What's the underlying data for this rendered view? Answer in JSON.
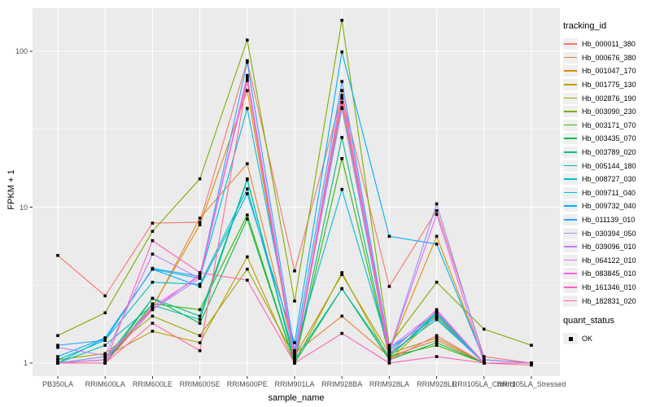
{
  "figure": {
    "background": "#FFFFFF",
    "panel_background": "#EBEBEB",
    "grid_color": "#FFFFFF",
    "axis_text_color": "#4D4D4D",
    "tick_mark_color": "#333333",
    "point_color": "#000000"
  },
  "chart_data": {
    "type": "line",
    "title": "",
    "xlabel": "sample_name",
    "ylabel": "FPKM + 1",
    "y_scale": "log10",
    "y_major_ticks": [
      1,
      10,
      100
    ],
    "y_major_tick_labels": [
      "1",
      "10",
      "100"
    ],
    "y_minor_ticks": [
      3.162,
      31.62
    ],
    "ylim": [
      0.85,
      190
    ],
    "grid": true,
    "categories": [
      "PB350LA",
      "RRIM600LA",
      "RRIM600LE",
      "RRIM600SE",
      "RRIM600PE",
      "RRIM901LA",
      "RRIM928BA",
      "RRIM928LA",
      "RRIM928LE",
      "RRII105LA_Control",
      "RRII105LA_Stressed"
    ],
    "series": [
      {
        "name": "Hb_000011_380",
        "color": "#F8766D",
        "values": [
          4.9,
          2.7,
          7.9,
          8.0,
          87,
          3.9,
          52,
          3.1,
          9.5,
          1.1,
          1.0
        ]
      },
      {
        "name": "Hb_000676_380",
        "color": "#EA8331",
        "values": [
          1.0,
          1.05,
          2.25,
          8.5,
          19,
          1.15,
          2.0,
          1.1,
          1.4,
          1.0,
          1.0
        ]
      },
      {
        "name": "Hb_001047_170",
        "color": "#D89000",
        "values": [
          1.0,
          1.0,
          2.3,
          7.7,
          56,
          1.05,
          47,
          1.2,
          6.5,
          1.05,
          1.0
        ]
      },
      {
        "name": "Hb_001775_130",
        "color": "#C09B00",
        "values": [
          1.0,
          1.1,
          1.6,
          1.35,
          4.8,
          1.0,
          3.8,
          1.05,
          2.0,
          1.0,
          1.0
        ]
      },
      {
        "name": "Hb_002876_190",
        "color": "#A3A500",
        "values": [
          1.05,
          1.15,
          2.0,
          1.5,
          4.0,
          1.1,
          3.7,
          1.15,
          1.45,
          1.0,
          1.0
        ]
      },
      {
        "name": "Hb_003090_230",
        "color": "#7CAE00",
        "values": [
          1.5,
          2.1,
          7.0,
          15.2,
          118,
          2.5,
          158,
          1.3,
          3.3,
          1.65,
          1.3
        ]
      },
      {
        "name": "Hb_003171_070",
        "color": "#39B600",
        "values": [
          1.0,
          1.0,
          2.4,
          2.2,
          8.9,
          1.0,
          20.5,
          1.1,
          1.3,
          1.0,
          1.0
        ]
      },
      {
        "name": "Hb_003435_070",
        "color": "#00BB4E",
        "values": [
          1.0,
          1.0,
          2.6,
          1.8,
          8.4,
          1.0,
          3.0,
          1.05,
          1.35,
          1.0,
          1.0
        ]
      },
      {
        "name": "Hb_003789_020",
        "color": "#00BF7D",
        "values": [
          1.0,
          1.05,
          2.6,
          2.0,
          15.2,
          1.0,
          28,
          1.1,
          2.1,
          1.0,
          1.0
        ]
      },
      {
        "name": "Hb_005144_180",
        "color": "#00C1A3",
        "values": [
          1.0,
          1.3,
          2.35,
          1.9,
          15.0,
          1.05,
          3.0,
          1.1,
          2.05,
          1.0,
          1.0
        ]
      },
      {
        "name": "Hb_008727_030",
        "color": "#00BFC4",
        "values": [
          1.05,
          1.4,
          3.3,
          3.2,
          13.1,
          1.1,
          43.5,
          1.15,
          1.9,
          1.0,
          1.0
        ]
      },
      {
        "name": "Hb_009711_040",
        "color": "#00BAE0",
        "values": [
          1.0,
          1.45,
          4.0,
          3.5,
          43,
          1.2,
          13,
          1.2,
          2.1,
          1.0,
          1.0
        ]
      },
      {
        "name": "Hb_009732_040",
        "color": "#00B0F6",
        "values": [
          1.1,
          1.45,
          4.0,
          3.1,
          12.2,
          1.35,
          99,
          6.5,
          5.8,
          1.05,
          1.0
        ]
      },
      {
        "name": "Hb_011139_010",
        "color": "#35A2FF",
        "values": [
          1.3,
          1.4,
          4.05,
          3.6,
          85,
          1.2,
          64,
          1.25,
          1.95,
          1.0,
          1.0
        ]
      },
      {
        "name": "Hb_030394_050",
        "color": "#9590FF",
        "values": [
          1.0,
          1.1,
          2.2,
          3.5,
          68,
          1.1,
          43,
          1.2,
          10.5,
          1.05,
          1.0
        ]
      },
      {
        "name": "Hb_039096_010",
        "color": "#C77CFF",
        "values": [
          1.26,
          1.12,
          5.0,
          3.5,
          70,
          1.1,
          50,
          1.25,
          2.15,
          1.0,
          1.0
        ]
      },
      {
        "name": "Hb_064122_010",
        "color": "#E76BF3",
        "values": [
          1.0,
          1.05,
          2.3,
          3.6,
          68,
          1.05,
          56,
          1.2,
          9.0,
          1.0,
          1.0
        ]
      },
      {
        "name": "Hb_083845_010",
        "color": "#FA62DB",
        "values": [
          1.0,
          1.0,
          2.2,
          3.7,
          65,
          1.0,
          50,
          1.15,
          2.2,
          1.0,
          1.0
        ]
      },
      {
        "name": "Hb_161346_010",
        "color": "#FF62BC",
        "values": [
          1.0,
          1.0,
          6.1,
          3.8,
          3.4,
          1.0,
          1.55,
          1.0,
          1.1,
          1.0,
          1.0
        ]
      },
      {
        "name": "Hb_182831_020",
        "color": "#FF6A98",
        "values": [
          1.0,
          1.0,
          1.8,
          1.2,
          65,
          1.0,
          56,
          1.05,
          1.5,
          1.0,
          0.97
        ]
      }
    ],
    "legend": {
      "title": "tracking_id",
      "position": "right"
    },
    "quant_legend": {
      "title": "quant_status",
      "items": [
        {
          "label": "OK",
          "marker": "black-square"
        }
      ]
    }
  }
}
